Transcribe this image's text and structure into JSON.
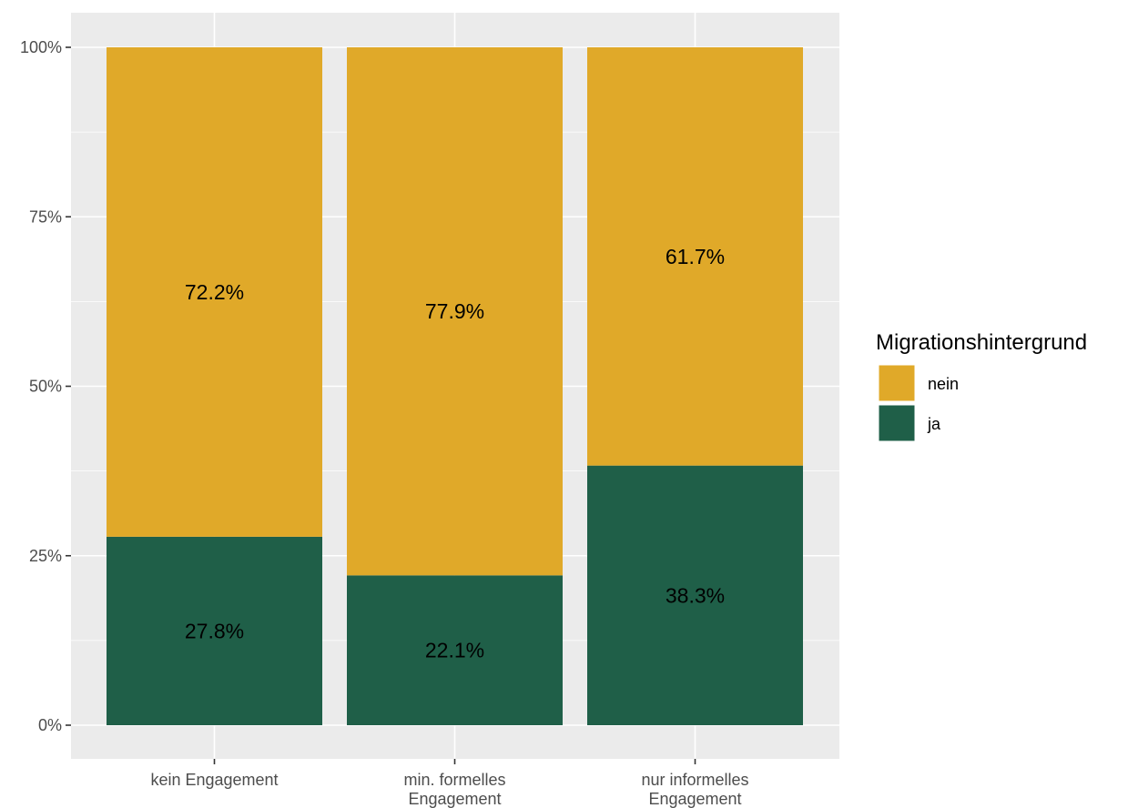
{
  "chart_data": {
    "type": "bar",
    "stacked": true,
    "categories": [
      [
        "kein Engagement"
      ],
      [
        "min. formelles",
        "Engagement"
      ],
      [
        "nur informelles",
        "Engagement"
      ]
    ],
    "series": [
      {
        "name": "ja",
        "color": "#1f5f48",
        "values": [
          27.8,
          22.1,
          38.3
        ],
        "labels": [
          "27.8%",
          "22.1%",
          "38.3%"
        ]
      },
      {
        "name": "nein",
        "color": "#e0a929",
        "values": [
          72.2,
          77.9,
          61.7
        ],
        "labels": [
          "72.2%",
          "77.9%",
          "61.7%"
        ]
      }
    ],
    "y_ticks": [
      {
        "value": 0,
        "label": "0%"
      },
      {
        "value": 25,
        "label": "25%"
      },
      {
        "value": 50,
        "label": "50%"
      },
      {
        "value": 75,
        "label": "75%"
      },
      {
        "value": 100,
        "label": "100%"
      }
    ],
    "ylim": [
      0,
      100
    ],
    "legend": {
      "title": "Migrationshintergrund",
      "position": "right",
      "entries": [
        {
          "name": "nein",
          "color": "#e0a929"
        },
        {
          "name": "ja",
          "color": "#1f5f48"
        }
      ]
    },
    "colors": {
      "panel_background": "#ebebeb",
      "grid": "#ffffff"
    },
    "grid": true
  }
}
